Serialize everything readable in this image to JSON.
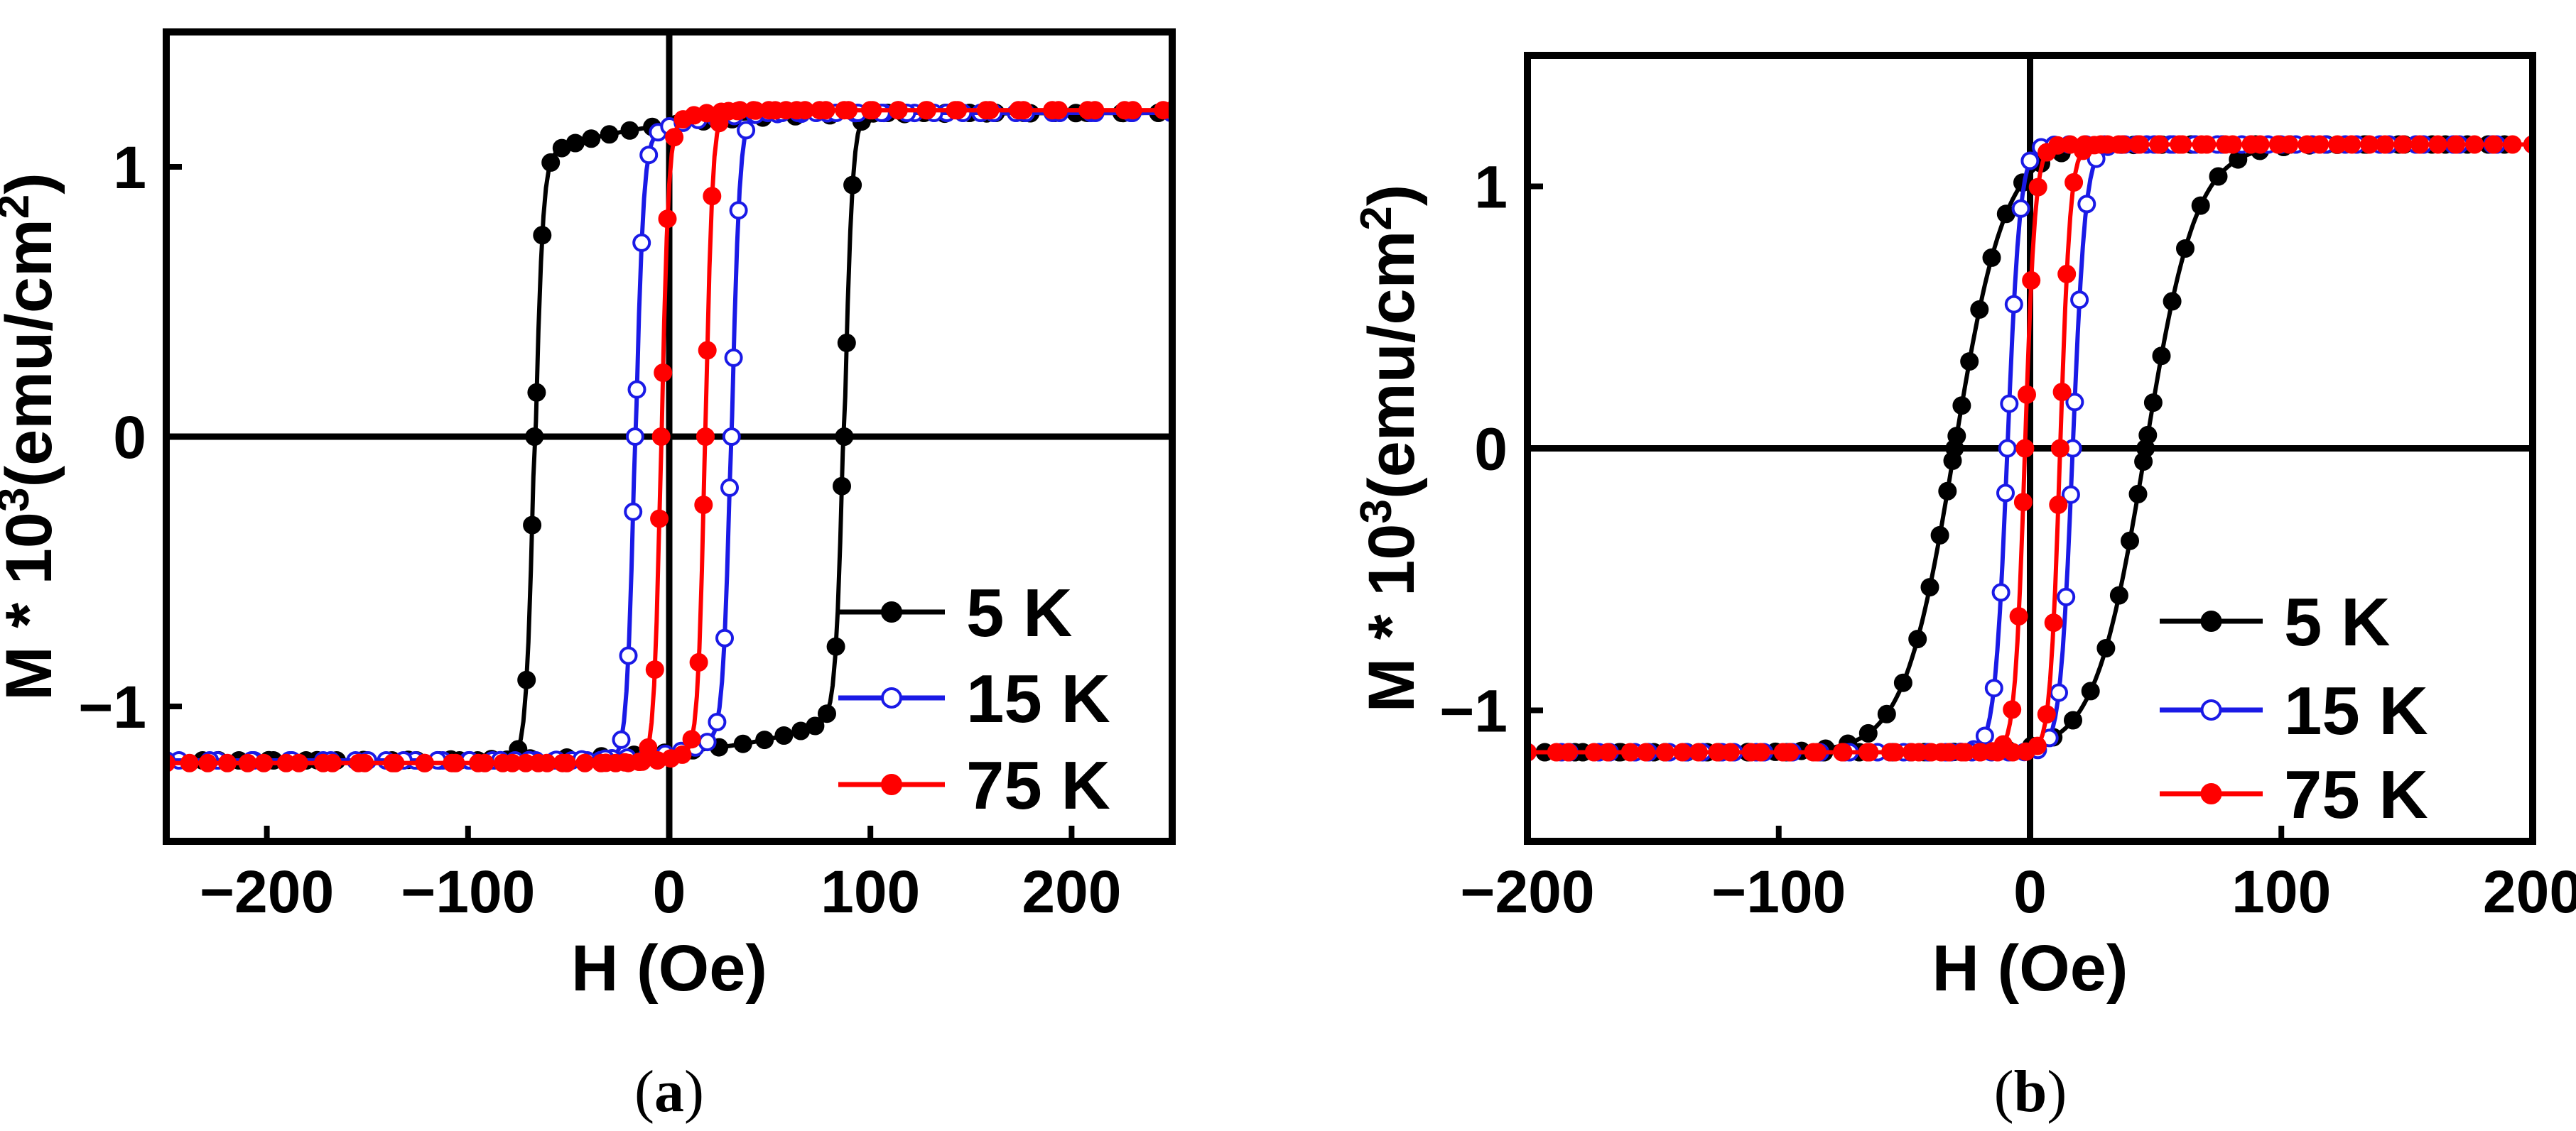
{
  "colors": {
    "5 K": "#000000",
    "15 K": "#1a1ae6",
    "75 K": "#ff0000",
    "axis": "#000000"
  },
  "chart_data": [
    {
      "type": "line",
      "caption_open": "(",
      "caption_letter": "a",
      "caption_close": ")",
      "xlabel": "H (Oe)",
      "ylabel_main": "M * 10",
      "ylabel_sup": "3",
      "ylabel_unit": "(emu/cm",
      "ylabel_unit_sup": "2",
      "ylabel_close": ")",
      "xlim": [
        -250,
        250
      ],
      "ylim": [
        -1.5,
        1.5
      ],
      "xticks": [
        -200,
        -100,
        0,
        100,
        200
      ],
      "xtick_labels": [
        "−200",
        "−100",
        "0",
        "100",
        "200"
      ],
      "yticks": [
        -1,
        0,
        1
      ],
      "ytick_labels": [
        "−1",
        "0",
        "1"
      ],
      "legend_position": "bottom-right",
      "series": [
        {
          "name": "5 K",
          "marker": "filled",
          "Hc": 77,
          "shift": 10,
          "Ms": 1.2,
          "w": 4,
          "ax": 50,
          "af": 0.14
        },
        {
          "name": "15 K",
          "marker": "open",
          "Hc": 24,
          "shift": 7,
          "Ms": 1.2,
          "w": 4,
          "ax": 22,
          "af": 0.09
        },
        {
          "name": "75 K",
          "marker": "filled",
          "Hc": 11,
          "shift": 7,
          "Ms": 1.21,
          "w": 3.5,
          "ax": 12,
          "af": 0.06
        }
      ]
    },
    {
      "type": "line",
      "caption_open": "(",
      "caption_letter": "b",
      "caption_close": ")",
      "xlabel": "H (Oe)",
      "ylabel_main": "M * 10",
      "ylabel_sup": "3",
      "ylabel_unit": "(emu/cm",
      "ylabel_unit_sup": "2",
      "ylabel_close": ")",
      "xlim": [
        -200,
        200
      ],
      "ylim": [
        -1.5,
        1.5
      ],
      "xticks": [
        -200,
        -100,
        0,
        100,
        200
      ],
      "xtick_labels": [
        "−200",
        "−100",
        "0",
        "100",
        "200"
      ],
      "yticks": [
        -1,
        0,
        1
      ],
      "ytick_labels": [
        "−1",
        "0",
        "1"
      ],
      "legend_position": "bottom-right",
      "series": [
        {
          "name": "5 K",
          "marker": "filled",
          "Hc": 38,
          "shift": 8,
          "Ms": 1.16,
          "w": 20,
          "ax": 0,
          "af": 0
        },
        {
          "name": "15 K",
          "marker": "open",
          "Hc": 13,
          "shift": 4,
          "Ms": 1.16,
          "w": 5,
          "ax": 0,
          "af": 0
        },
        {
          "name": "75 K",
          "marker": "filled",
          "Hc": 7,
          "shift": 5,
          "Ms": 1.16,
          "w": 4,
          "ax": 0,
          "af": 0
        }
      ]
    }
  ]
}
